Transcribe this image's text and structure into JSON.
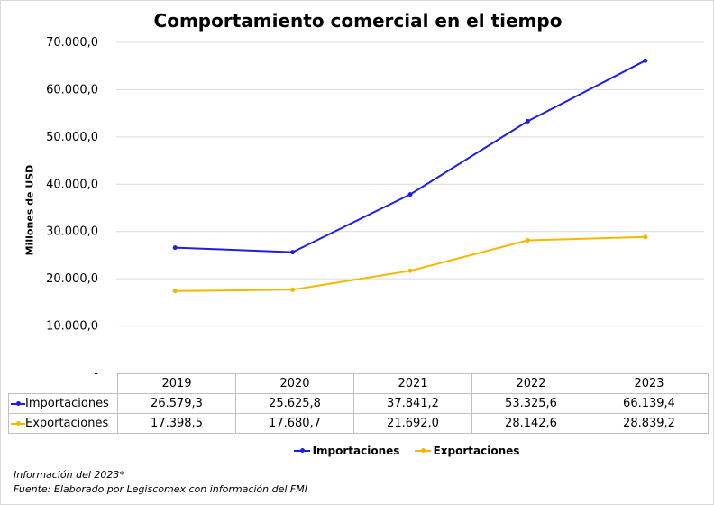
{
  "chart_data": {
    "type": "line",
    "title": "Comportamiento comercial en el tiempo",
    "ylabel": "Millones de USD",
    "xlabel": "",
    "ylim": [
      0,
      70000
    ],
    "y_ticks": [
      "-",
      "10.000,0",
      "20.000,0",
      "30.000,0",
      "40.000,0",
      "50.000,0",
      "60.000,0",
      "70.000,0"
    ],
    "y_tick_values": [
      0,
      10000,
      20000,
      30000,
      40000,
      50000,
      60000,
      70000
    ],
    "categories": [
      "2019",
      "2020",
      "2021",
      "2022",
      "2023"
    ],
    "grid": true,
    "legend_position": "bottom",
    "series": [
      {
        "name": "Importaciones",
        "color": "#1f1fe0",
        "values": [
          26579.3,
          25625.8,
          37841.2,
          53325.6,
          66139.4
        ],
        "labels": [
          "26.579,3",
          "25.625,8",
          "37.841,2",
          "53.325,6",
          "66.139,4"
        ]
      },
      {
        "name": "Exportaciones",
        "color": "#f5b800",
        "values": [
          17398.5,
          17680.7,
          21692.0,
          28142.6,
          28839.2
        ],
        "labels": [
          "17.398,5",
          "17.680,7",
          "21.692,0",
          "28.142,6",
          "28.839,2"
        ]
      }
    ]
  },
  "footnote": {
    "line1": "Información del 2023*",
    "line2": "Fuente: Elaborado por Legiscomex con información del FMI"
  }
}
